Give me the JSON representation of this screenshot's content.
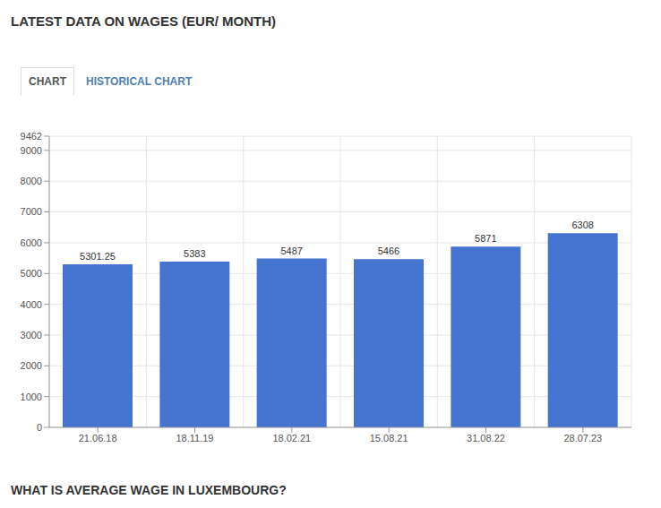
{
  "header": {
    "title": "LATEST DATA ON WAGES (EUR/ MONTH)"
  },
  "tabs": [
    "CHART",
    "HISTORICAL CHART"
  ],
  "chart_data": {
    "type": "bar",
    "categories": [
      "21.06.18",
      "18.11.19",
      "18.02.21",
      "15.08.21",
      "31.08.22",
      "28.07.23"
    ],
    "values": [
      5301.25,
      5383,
      5487,
      5466,
      5871,
      6308
    ],
    "color": "#4674d1",
    "ylim": [
      0,
      9462
    ],
    "yticks": [
      0,
      1000,
      2000,
      3000,
      4000,
      5000,
      6000,
      7000,
      8000,
      9000,
      9462
    ],
    "grid": true,
    "data_labels": true
  },
  "footer": {
    "heading": "WHAT IS AVERAGE WAGE IN LUXEMBOURG?"
  }
}
